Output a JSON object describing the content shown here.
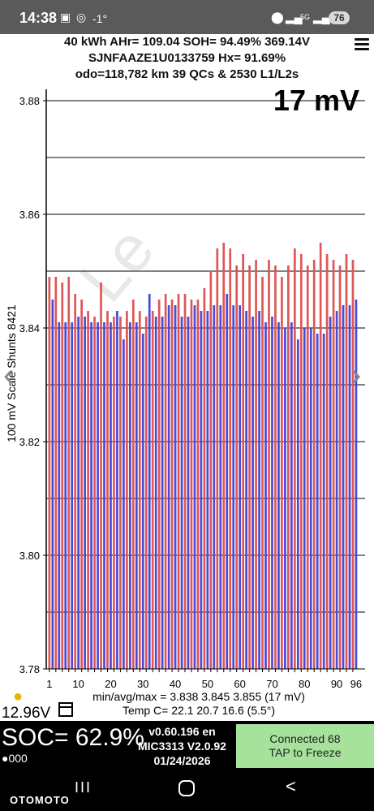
{
  "status": {
    "time": "14:38",
    "temp": "-1°",
    "battery": "76",
    "icons": [
      "gallery-icon",
      "chrome-icon",
      "location-icon",
      "signal-icon",
      "5g-icon",
      "signal-icon"
    ]
  },
  "header": {
    "line1": "40 kWh  AHr= 109.04  SOH= 94.49%   369.14V",
    "line2": "SJNFAAZE1U0133759   Hx= 91.69%",
    "line3": "odo=118,782 km 39 QCs & 2530 L1/L2s"
  },
  "chart": {
    "spread_label": "17 mV",
    "stats_line1": "min/avg/max = 3.838 3.845 3.855  (17 mV)",
    "stats_line2": "Temp C= 22.1  20.7  16.6  (5.5°)",
    "watermark": "Le"
  },
  "chart_data": {
    "type": "bar",
    "ylabel": "100 mV Scale  Shunts 8421",
    "ylim": [
      3.78,
      3.88
    ],
    "yticks": [
      "3.88",
      "3.86",
      "3.84",
      "3.82",
      "3.80",
      "3.78"
    ],
    "xticks": [
      "1",
      "10",
      "20",
      "30",
      "40",
      "50",
      "60",
      "70",
      "80",
      "90",
      "96"
    ],
    "grid": true,
    "colors": {
      "odd": "#e05656",
      "even": "#4a4ad8"
    },
    "values": [
      3.849,
      3.845,
      3.849,
      3.841,
      3.848,
      3.841,
      3.849,
      3.841,
      3.846,
      3.842,
      3.845,
      3.842,
      3.843,
      3.841,
      3.842,
      3.841,
      3.848,
      3.841,
      3.843,
      3.841,
      3.842,
      3.843,
      3.842,
      3.838,
      3.843,
      3.841,
      3.845,
      3.841,
      3.843,
      3.839,
      3.842,
      3.846,
      3.843,
      3.842,
      3.845,
      3.842,
      3.846,
      3.844,
      3.845,
      3.844,
      3.846,
      3.842,
      3.846,
      3.842,
      3.845,
      3.844,
      3.845,
      3.843,
      3.847,
      3.843,
      3.85,
      3.844,
      3.854,
      3.844,
      3.855,
      3.846,
      3.854,
      3.844,
      3.851,
      3.844,
      3.853,
      3.843,
      3.851,
      3.842,
      3.852,
      3.843,
      3.849,
      3.841,
      3.852,
      3.842,
      3.851,
      3.841,
      3.849,
      3.84,
      3.851,
      3.841,
      3.854,
      3.838,
      3.853,
      3.84,
      3.851,
      3.84,
      3.852,
      3.839,
      3.855,
      3.839,
      3.853,
      3.842,
      3.852,
      3.843,
      3.851,
      3.844,
      3.853,
      3.844,
      3.852,
      3.845
    ]
  },
  "footer": {
    "voltage": "12.96V",
    "soc": "SOC= 62.9%",
    "dots": "●000",
    "version": "v0.60.196 en",
    "module": "MIC3313 V2.0.92",
    "date": "01/24/2026",
    "connected_line1": "Connected 68",
    "connected_line2": "TAP to Freeze"
  },
  "nav": {
    "brand": "OTOMOTO",
    "recent": "III",
    "back": "<"
  }
}
